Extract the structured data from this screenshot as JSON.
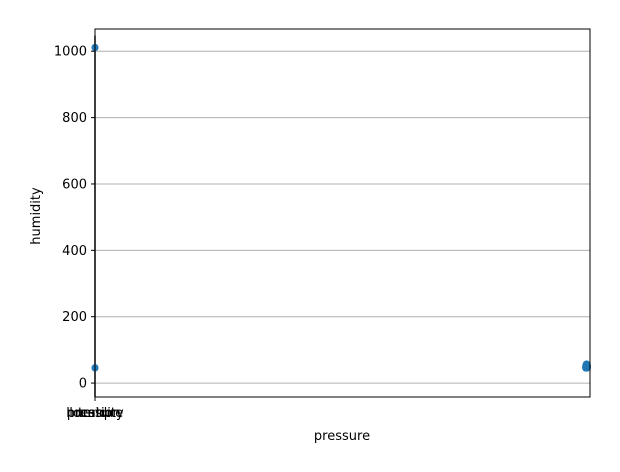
{
  "chart_data": {
    "type": "scatter",
    "title": "",
    "xlabel": "pressure",
    "ylabel": "humidity",
    "x_tick_labels": [
      "pressure",
      "humidity",
      "temp",
      "location"
    ],
    "y_ticks": [
      0,
      200,
      400,
      600,
      800,
      1000
    ],
    "ylim": [
      -42,
      1067
    ],
    "xlim": [
      0,
      1014
    ],
    "grid": "y",
    "colors": {
      "marker": "#1f77b4",
      "grid": "#b0b0b0",
      "axis": "#000000"
    },
    "series": [
      {
        "x": [
          0,
          0,
          0,
          0,
          1005,
          1005.5,
          1006,
          1006.5,
          1007,
          1007.5,
          1008,
          1008.5,
          1009,
          1005,
          1006,
          1007,
          1008,
          1009,
          1005.5,
          1006.5,
          1007.5,
          1008.5,
          1006,
          1007,
          1008,
          1007,
          1006.5,
          1007.5
        ],
        "y": [
          1010,
          1012,
          47,
          45,
          45,
          46,
          47,
          45,
          46,
          47,
          45,
          46,
          47,
          50,
          51,
          50,
          51,
          50,
          53,
          54,
          53,
          54,
          56,
          57,
          56,
          58,
          49,
          48
        ]
      }
    ]
  }
}
